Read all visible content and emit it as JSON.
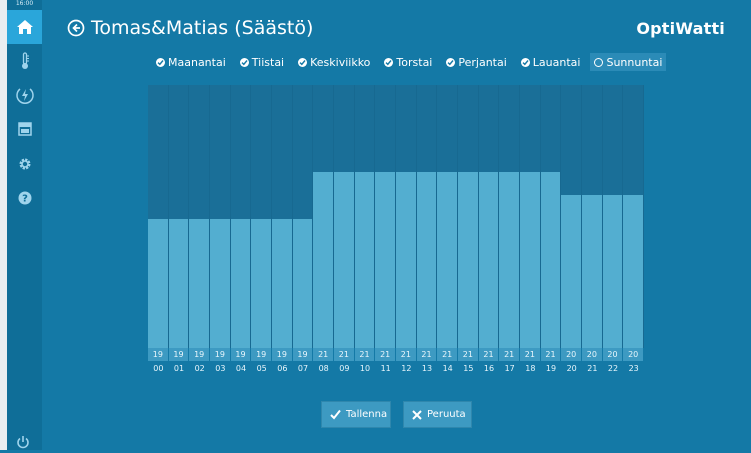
{
  "clock": "16:00",
  "header": {
    "title": "Tomas&Matias (Säästö)",
    "brand": "OptiWatti"
  },
  "sidebar": {
    "items": [
      {
        "name": "home",
        "icon": "home-icon",
        "active": true
      },
      {
        "name": "temperature",
        "icon": "thermometer-icon"
      },
      {
        "name": "energy",
        "icon": "energy-icon"
      },
      {
        "name": "schedule",
        "icon": "panel-icon"
      },
      {
        "name": "settings",
        "icon": "gear-icon"
      },
      {
        "name": "help",
        "icon": "help-icon"
      }
    ],
    "power_icon": "power-icon"
  },
  "days": [
    {
      "label": "Maanantai",
      "checked": true
    },
    {
      "label": "Tiistai",
      "checked": true
    },
    {
      "label": "Keskiviikko",
      "checked": true
    },
    {
      "label": "Torstai",
      "checked": true
    },
    {
      "label": "Perjantai",
      "checked": true
    },
    {
      "label": "Lauantai",
      "checked": true
    },
    {
      "label": "Sunnuntai",
      "checked": false
    }
  ],
  "chart_data": {
    "type": "bar",
    "categories": [
      "00",
      "01",
      "02",
      "03",
      "04",
      "05",
      "06",
      "07",
      "08",
      "09",
      "10",
      "11",
      "12",
      "13",
      "14",
      "15",
      "16",
      "17",
      "18",
      "19",
      "20",
      "21",
      "22",
      "23"
    ],
    "values": [
      19,
      19,
      19,
      19,
      19,
      19,
      19,
      19,
      21,
      21,
      21,
      21,
      21,
      21,
      21,
      21,
      21,
      21,
      21,
      21,
      20,
      20,
      20,
      20
    ],
    "ylim": [
      13.5,
      24.7
    ]
  },
  "buttons": {
    "save": "Tallenna",
    "cancel": "Peruuta"
  },
  "colors": {
    "background": "#1479a6",
    "sidebar": "#0f6e98",
    "active": "#2aa6da",
    "bar": "#53aed0",
    "chart_bg": "#1a6f98"
  }
}
